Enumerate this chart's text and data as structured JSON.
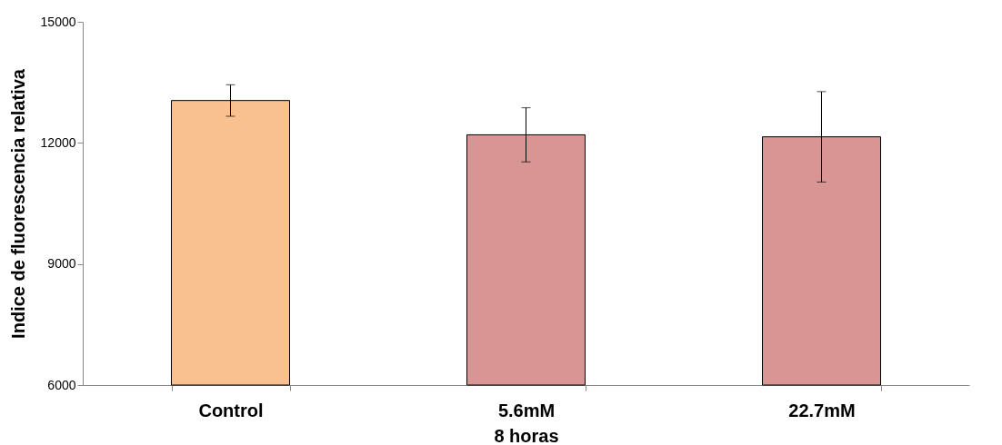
{
  "chart_data": {
    "type": "bar",
    "xlabel": "8 horas",
    "ylabel": "Indice de fluorescencia relativa",
    "categories": [
      "Control",
      "5.6mM",
      "22.7mM"
    ],
    "values": [
      13050,
      12200,
      12150
    ],
    "colors": [
      "#f9c090",
      "#d99594",
      "#d99594"
    ],
    "errors": [
      390,
      670,
      1120
    ],
    "ylim": [
      6000,
      15000
    ],
    "yticks": [
      6000,
      9000,
      12000,
      15000
    ],
    "grid": false
  }
}
